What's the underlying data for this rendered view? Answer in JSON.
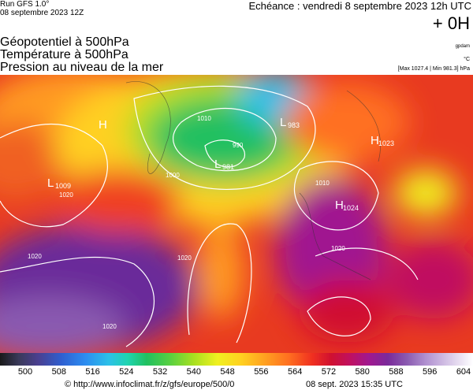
{
  "header": {
    "run": "Run GFS 1.0°",
    "run_date": "08 septembre 2023 12Z",
    "echeance": "Echéance : vendredi 8 septembre 2023 12h UTC",
    "offset": "+ 0H",
    "unit_geo": "gpdam",
    "unit_temp": "°C",
    "pressure_range": "[Max 1027.4 | Min 981.3] hPa",
    "fields": [
      "Géopotentiel à 500hPa",
      "Température à 500hPa",
      "Pression au niveau de la mer"
    ]
  },
  "map": {
    "labels": [
      {
        "text": "L",
        "value": "1009"
      },
      {
        "text": "L",
        "value": "983"
      },
      {
        "text": "L",
        "value": "981"
      },
      {
        "text": "H",
        "value": "1024"
      },
      {
        "text": "H",
        "value": "1023"
      },
      {
        "text": "H",
        "value": ""
      }
    ],
    "isobars": [
      "1020",
      "1020",
      "1020",
      "1020",
      "1010",
      "990",
      "1000",
      "1020",
      "1010"
    ]
  },
  "legend": {
    "labels": [
      500,
      508,
      516,
      524,
      532,
      540,
      548,
      556,
      564,
      572,
      580,
      588,
      596,
      604
    ]
  },
  "footer": {
    "url": "© http://www.infoclimat.fr/z/gfs/europe/500/0",
    "generated": "08 sept. 2023 15:35 UTC"
  }
}
